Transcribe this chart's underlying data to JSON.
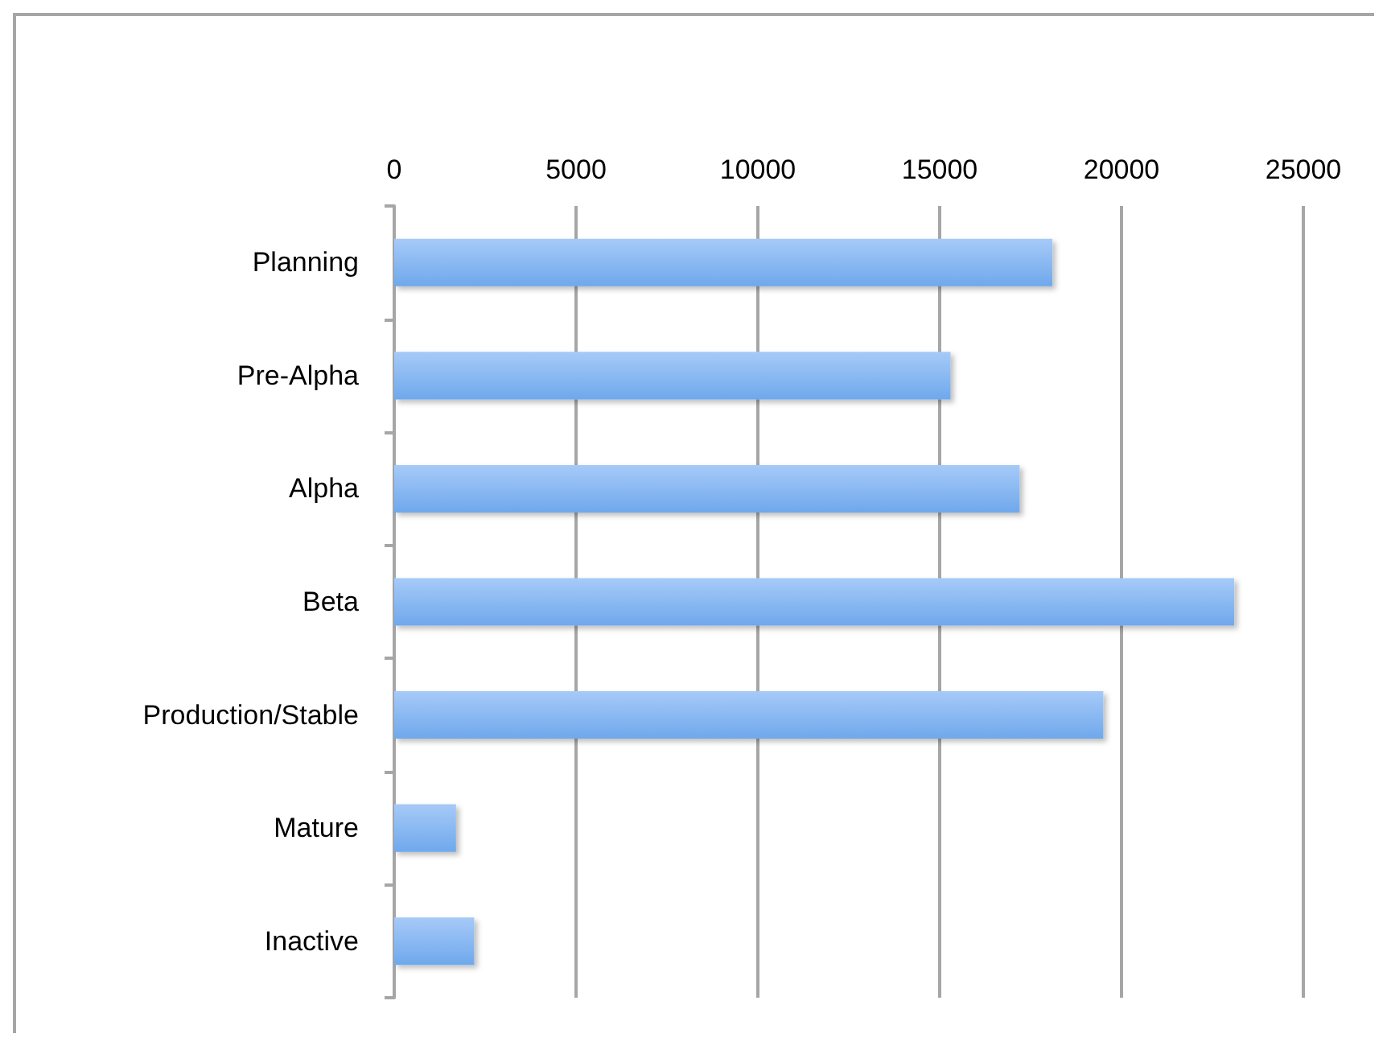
{
  "chart_data": {
    "type": "bar",
    "orientation": "horizontal",
    "categories": [
      "Planning",
      "Pre-Alpha",
      "Alpha",
      "Beta",
      "Production/Stable",
      "Mature",
      "Inactive"
    ],
    "values": [
      18100,
      15300,
      17200,
      23100,
      19500,
      1700,
      2200
    ],
    "color": "#6fa8ec",
    "xlim": [
      0,
      25000
    ],
    "xticks": [
      0,
      5000,
      10000,
      15000,
      20000,
      25000
    ],
    "grid": "x"
  }
}
